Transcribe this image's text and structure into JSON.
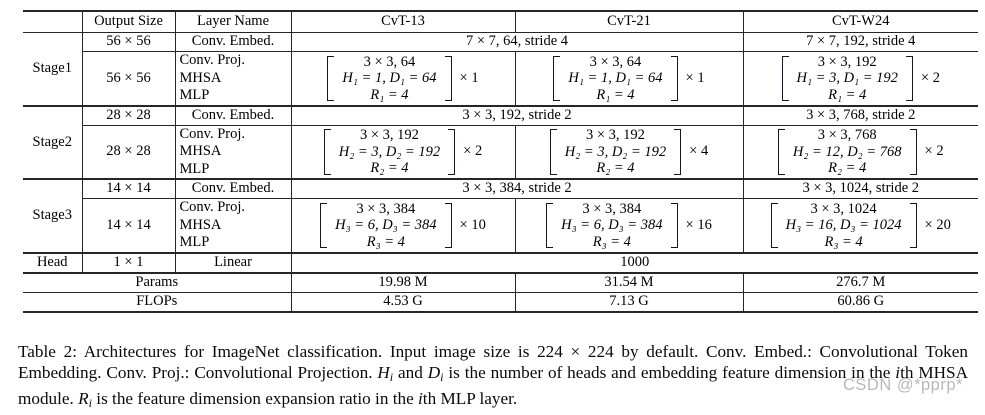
{
  "colors": {
    "rule": "#25252c",
    "watermark_gray": "#b9b9b9"
  },
  "table": {
    "header": {
      "corner": "",
      "output_size": "Output Size",
      "layer_name": "Layer Name",
      "models": [
        "CvT-13",
        "CvT-21",
        "CvT-W24"
      ]
    },
    "stages": [
      {
        "name": "Stage1",
        "embed": {
          "output_size": "56 × 56",
          "layer": "Conv. Embed.",
          "shared": "7 × 7, 64, stride 4",
          "w24": "7 × 7, 192, stride 4"
        },
        "block": {
          "output_size": "56 × 56",
          "layers": [
            "Conv. Proj.",
            "MHSA",
            "MLP"
          ],
          "cells": [
            {
              "lines": [
                "3 × 3, 64",
                "H₁ = 1, D₁ = 64",
                "R₁ = 4"
              ],
              "mult": "× 1"
            },
            {
              "lines": [
                "3 × 3, 64",
                "H₁ = 1, D₁ = 64",
                "R₁ = 4"
              ],
              "mult": "× 1"
            },
            {
              "lines": [
                "3 × 3, 192",
                "H₁ = 3, D₁ = 192",
                "R₁ = 4"
              ],
              "mult": "× 2"
            }
          ]
        }
      },
      {
        "name": "Stage2",
        "embed": {
          "output_size": "28 × 28",
          "layer": "Conv. Embed.",
          "shared": "3 × 3, 192, stride 2",
          "w24": "3 × 3, 768, stride 2"
        },
        "block": {
          "output_size": "28 × 28",
          "layers": [
            "Conv. Proj.",
            "MHSA",
            "MLP"
          ],
          "cells": [
            {
              "lines": [
                "3 × 3, 192",
                "H₂ = 3, D₂ = 192",
                "R₂ = 4"
              ],
              "mult": "× 2"
            },
            {
              "lines": [
                "3 × 3, 192",
                "H₂ = 3, D₂ = 192",
                "R₂ = 4"
              ],
              "mult": "× 4"
            },
            {
              "lines": [
                "3 × 3, 768",
                "H₂ = 12, D₂ = 768",
                "R₂ = 4"
              ],
              "mult": "× 2"
            }
          ]
        }
      },
      {
        "name": "Stage3",
        "embed": {
          "output_size": "14 × 14",
          "layer": "Conv. Embed.",
          "shared": "3 × 3, 384, stride 2",
          "w24": "3 × 3, 1024, stride 2"
        },
        "block": {
          "output_size": "14 × 14",
          "layers": [
            "Conv. Proj.",
            "MHSA",
            "MLP"
          ],
          "cells": [
            {
              "lines": [
                "3 × 3, 384",
                "H₃ = 6, D₃ = 384",
                "R₃ = 4"
              ],
              "mult": "× 10"
            },
            {
              "lines": [
                "3 × 3, 384",
                "H₃ = 6, D₃ = 384",
                "R₃ = 4"
              ],
              "mult": "× 16"
            },
            {
              "lines": [
                "3 × 3, 1024",
                "H₃ = 16, D₃ = 1024",
                "R₃ = 4"
              ],
              "mult": "× 20"
            }
          ]
        }
      }
    ],
    "head": {
      "label": "Head",
      "output_size": "1 × 1",
      "layer": "Linear",
      "classes": "1000"
    },
    "summary": [
      {
        "label": "Params",
        "values": [
          "19.98 M",
          "31.54 M",
          "276.7 M"
        ]
      },
      {
        "label": "FLOPs",
        "values": [
          "4.53 G",
          "7.13 G",
          "60.86 G"
        ]
      }
    ]
  },
  "caption": {
    "parts": [
      {
        "t": "Table 2: Architectures for ImageNet classification. Input image size is 224 × 224 by default. Conv. Embed.: Convolutional Token Embedding.  Conv.  Proj.:  Convolutional Projection.  ",
        "s": "n"
      },
      {
        "t": "H",
        "s": "v"
      },
      {
        "t": "i",
        "s": "s"
      },
      {
        "t": " and ",
        "s": "n"
      },
      {
        "t": "D",
        "s": "v"
      },
      {
        "t": "i",
        "s": "s"
      },
      {
        "t": " is the number of heads and embedding feature dimension in the ",
        "s": "n"
      },
      {
        "t": "i",
        "s": "i"
      },
      {
        "t": "th MHSA module. ",
        "s": "n"
      },
      {
        "t": "R",
        "s": "v"
      },
      {
        "t": "i",
        "s": "s"
      },
      {
        "t": " is the feature dimension expansion ratio in the ",
        "s": "n"
      },
      {
        "t": "i",
        "s": "i"
      },
      {
        "t": "th MLP layer.",
        "s": "n"
      }
    ]
  },
  "watermark": {
    "text": "CSDN @*pprp*",
    "color": "#b9b9b9"
  }
}
